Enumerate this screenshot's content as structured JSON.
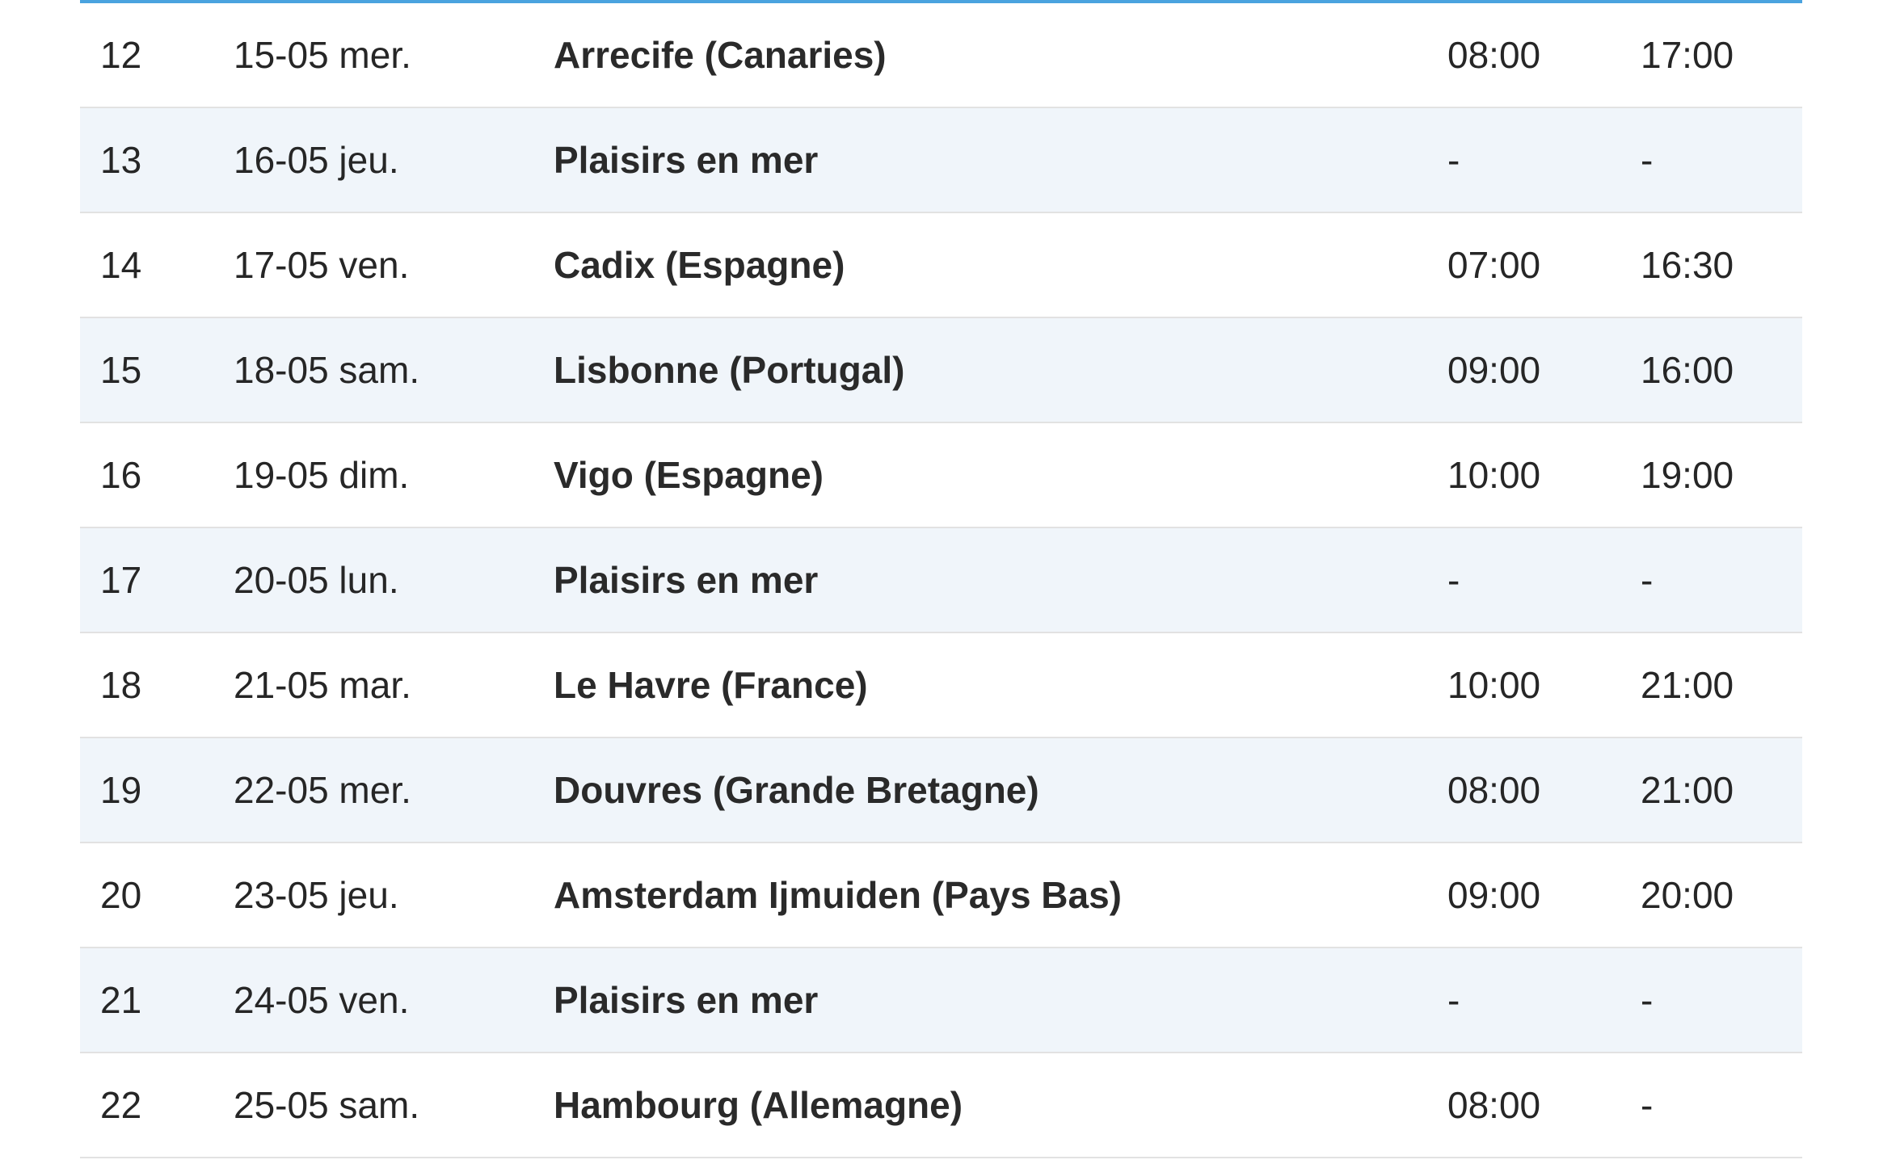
{
  "accent_color": "#4aa3df",
  "stripe_color": "#f0f5fa",
  "itinerary": [
    {
      "day": "12",
      "date": "15-05 mer.",
      "port": "Arrecife (Canaries)",
      "arrival": "08:00",
      "departure": "17:00"
    },
    {
      "day": "13",
      "date": "16-05 jeu.",
      "port": "Plaisirs en mer",
      "arrival": "-",
      "departure": "-"
    },
    {
      "day": "14",
      "date": "17-05 ven.",
      "port": "Cadix (Espagne)",
      "arrival": "07:00",
      "departure": "16:30"
    },
    {
      "day": "15",
      "date": "18-05 sam.",
      "port": "Lisbonne (Portugal)",
      "arrival": "09:00",
      "departure": "16:00"
    },
    {
      "day": "16",
      "date": "19-05 dim.",
      "port": "Vigo (Espagne)",
      "arrival": "10:00",
      "departure": "19:00"
    },
    {
      "day": "17",
      "date": "20-05 lun.",
      "port": "Plaisirs en mer",
      "arrival": "-",
      "departure": "-"
    },
    {
      "day": "18",
      "date": "21-05 mar.",
      "port": "Le Havre (France)",
      "arrival": "10:00",
      "departure": "21:00"
    },
    {
      "day": "19",
      "date": "22-05 mer.",
      "port": "Douvres (Grande Bretagne)",
      "arrival": "08:00",
      "departure": "21:00"
    },
    {
      "day": "20",
      "date": "23-05 jeu.",
      "port": "Amsterdam Ijmuiden (Pays Bas)",
      "arrival": "09:00",
      "departure": "20:00"
    },
    {
      "day": "21",
      "date": "24-05 ven.",
      "port": "Plaisirs en mer",
      "arrival": "-",
      "departure": "-"
    },
    {
      "day": "22",
      "date": "25-05 sam.",
      "port": "Hambourg (Allemagne)",
      "arrival": "08:00",
      "departure": "-"
    }
  ]
}
